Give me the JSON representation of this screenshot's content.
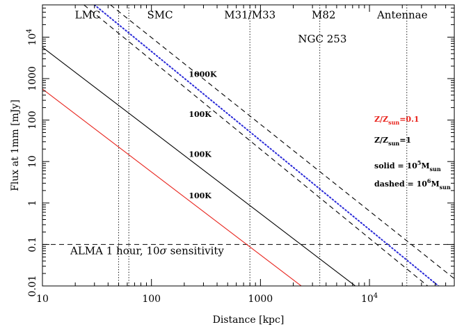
{
  "chart_data": {
    "type": "line",
    "xlabel": "Distance [kpc]",
    "ylabel": "Flux at 1mm [mJy]",
    "xscale": "log",
    "yscale": "log",
    "xlim": [
      10,
      60000
    ],
    "ylim": [
      0.01,
      60000
    ],
    "x_tick_labels": [
      {
        "value": 10,
        "label": "10"
      },
      {
        "value": 100,
        "label": "100"
      },
      {
        "value": 1000,
        "label": "1000"
      },
      {
        "value": 10000,
        "base": "10",
        "exp": "4"
      }
    ],
    "y_tick_labels": [
      {
        "value": 0.01,
        "label": "0.01"
      },
      {
        "value": 0.1,
        "label": "0.1"
      },
      {
        "value": 1,
        "label": "1"
      },
      {
        "value": 10,
        "label": "10"
      },
      {
        "value": 100,
        "label": "100"
      },
      {
        "value": 1000,
        "label": "1000"
      },
      {
        "value": 10000,
        "base": "10",
        "exp": "4"
      }
    ],
    "grid": false,
    "series": [
      {
        "style": "solid",
        "color": "#e8231c",
        "metallicity": 0.1,
        "mass": 5,
        "temperature_label": "100K",
        "label_at": [
          220,
          1.3
        ],
        "points": [
          [
            10,
            560
          ],
          [
            2430,
            0.0095
          ]
        ]
      },
      {
        "style": "solid",
        "color": "#000000",
        "metallicity": 1,
        "mass": 5,
        "temperature_label": "100K",
        "label_at": [
          220,
          13
        ],
        "points": [
          [
            10,
            5700
          ],
          [
            7600,
            0.0095
          ]
        ]
      },
      {
        "style": "dashed",
        "color": "#000000",
        "metallicity": 1,
        "mass": 6,
        "temperature_label": "100K",
        "label_at": [
          220,
          120
        ],
        "points": [
          [
            24,
            60000
          ],
          [
            35000,
            0.0095
          ]
        ]
      },
      {
        "style": "dashed",
        "color": "#000000",
        "metallicity": 1,
        "mass": 6,
        "temperature_label": "1000K",
        "label_at": [
          220,
          1100
        ],
        "points": [
          [
            42,
            60000
          ],
          [
            60000,
            0.015
          ]
        ]
      },
      {
        "style": "dotted",
        "color": "#2a2ad8",
        "metallicity": 1,
        "mass": 6,
        "temperature_label": "",
        "points": [
          [
            30,
            60000
          ],
          [
            44000,
            0.0095
          ]
        ]
      }
    ],
    "horizontal_lines": [
      {
        "y": 0.1,
        "style": "dashed",
        "label": "ALMA 1 hour, 10",
        "sigma": "σ",
        "label_suffix": " sensitivity",
        "label_at": [
          18,
          0.058
        ]
      }
    ],
    "vertical_markers": [
      {
        "x": 50,
        "label": "LMC",
        "label_at": [
          26,
          28000
        ]
      },
      {
        "x": 62,
        "label": "SMC",
        "label_at": [
          120,
          28000
        ]
      },
      {
        "x": 800,
        "label": "M31/M33",
        "label_at": [
          800,
          28000
        ]
      },
      {
        "x": 3500,
        "label": "M82",
        "label_at": [
          3800,
          28000
        ]
      },
      {
        "x": 3500,
        "label": "NGC 253",
        "label_at": [
          3700,
          7500
        ]
      },
      {
        "x": 22000,
        "label": "Antennae",
        "label_at": [
          20000,
          28000
        ]
      }
    ],
    "legend": {
      "placement": "right",
      "entries": [
        {
          "color": "#e8231c",
          "prefix": "Z/Z",
          "sub": "sun",
          "suffix": "=0.1"
        },
        {
          "color": "#000000",
          "prefix": "Z/Z",
          "sub": "sun",
          "suffix": "=1"
        },
        {
          "color": "#000000",
          "prefix": "solid = 10",
          "sup": "5",
          "mid": "M",
          "sub": "sun"
        },
        {
          "color": "#000000",
          "prefix": "dashed = 10",
          "sup": "6",
          "mid": "M",
          "sub": "sun"
        }
      ]
    }
  }
}
